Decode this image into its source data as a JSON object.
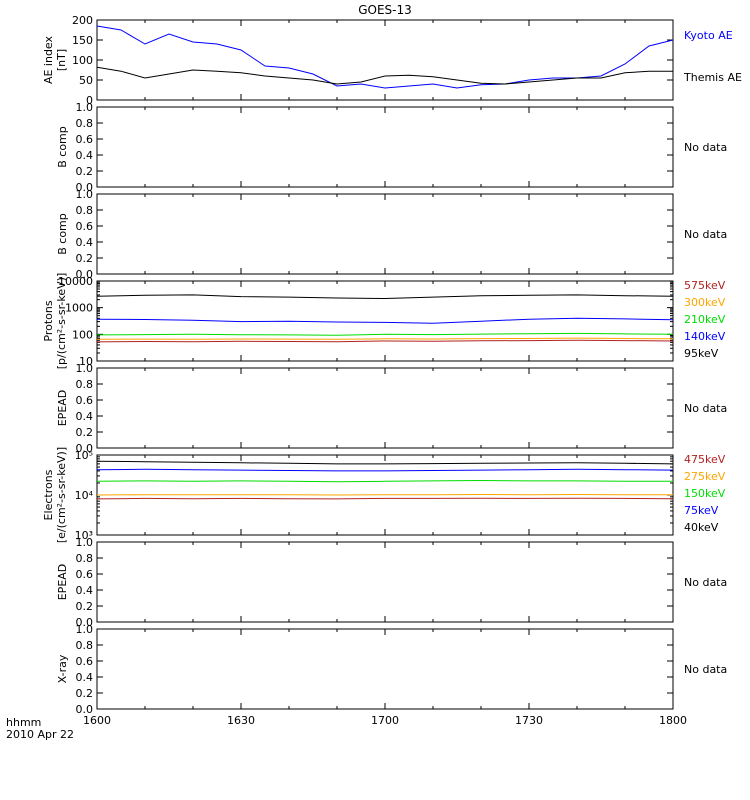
{
  "chart_data": {
    "type": "line",
    "title": "GOES-13",
    "x_ticks": [
      "1600",
      "1630",
      "1700",
      "1730",
      "1800"
    ],
    "x_range": [
      "1600",
      "1800"
    ],
    "x_corner_labels": [
      "hhmm",
      "2010 Apr 22"
    ],
    "no_data_text": "No data",
    "panels": [
      {
        "id": "ae",
        "ylabel": [
          "AE index",
          "[nT]"
        ],
        "scale": "linear",
        "ylim": [
          0,
          200
        ],
        "yticks": [
          0,
          50,
          100,
          150,
          200
        ],
        "ytick_labels": [
          "0",
          "50",
          "100",
          "150",
          "200"
        ],
        "x": [
          "1600",
          "1605",
          "1610",
          "1615",
          "1620",
          "1625",
          "1630",
          "1635",
          "1640",
          "1645",
          "1650",
          "1655",
          "1700",
          "1705",
          "1710",
          "1715",
          "1720",
          "1725",
          "1730",
          "1735",
          "1740",
          "1745",
          "1750",
          "1755",
          "1800"
        ],
        "series": [
          {
            "name": "Kyoto AE",
            "color": "#0000ff",
            "values": [
              185,
              175,
              140,
              165,
              145,
              140,
              125,
              85,
              80,
              65,
              35,
              40,
              30,
              35,
              40,
              30,
              38,
              40,
              50,
              55,
              55,
              60,
              90,
              135,
              150
            ]
          },
          {
            "name": "Themis AE",
            "color": "#000000",
            "values": [
              82,
              72,
              55,
              65,
              75,
              72,
              68,
              60,
              55,
              50,
              40,
              45,
              60,
              62,
              58,
              50,
              42,
              40,
              45,
              50,
              55,
              55,
              68,
              72,
              72
            ]
          }
        ]
      },
      {
        "id": "b1",
        "ylabel": [
          "B comp"
        ],
        "scale": "linear",
        "ylim": [
          0,
          1
        ],
        "yticks": [
          0,
          0.2,
          0.4,
          0.6,
          0.8,
          1.0
        ],
        "ytick_labels": [
          "0.0",
          "0.2",
          "0.4",
          "0.6",
          "0.8",
          "1.0"
        ],
        "no_data": true
      },
      {
        "id": "b2",
        "ylabel": [
          "B comp"
        ],
        "scale": "linear",
        "ylim": [
          0,
          1
        ],
        "yticks": [
          0,
          0.2,
          0.4,
          0.6,
          0.8,
          1.0
        ],
        "ytick_labels": [
          "0.0",
          "0.2",
          "0.4",
          "0.6",
          "0.8",
          "1.0"
        ],
        "no_data": true
      },
      {
        "id": "protons",
        "ylabel": [
          "Protons",
          "[p/(cm²-s-sr-keV)]"
        ],
        "scale": "log",
        "ylim": [
          10,
          10000
        ],
        "yticks": [
          10,
          100,
          1000,
          10000
        ],
        "ytick_labels": [
          "10",
          "100",
          "1000",
          "10000"
        ],
        "x": [
          "1600",
          "1610",
          "1620",
          "1630",
          "1640",
          "1650",
          "1700",
          "1710",
          "1720",
          "1730",
          "1740",
          "1750",
          "1800"
        ],
        "series": [
          {
            "name": "575keV",
            "color": "#b22222",
            "values": [
              52,
              54,
              53,
              55,
              54,
              53,
              56,
              55,
              57,
              58,
              60,
              58,
              56
            ]
          },
          {
            "name": "300keV",
            "color": "#ffa500",
            "values": [
              65,
              66,
              65,
              67,
              66,
              65,
              68,
              67,
              69,
              70,
              72,
              70,
              68
            ]
          },
          {
            "name": "210keV",
            "color": "#00dd00",
            "values": [
              95,
              98,
              100,
              97,
              95,
              93,
              100,
              98,
              102,
              105,
              108,
              104,
              100
            ]
          },
          {
            "name": "140keV",
            "color": "#0000ff",
            "values": [
              370,
              360,
              340,
              300,
              310,
              290,
              280,
              260,
              310,
              370,
              400,
              380,
              350
            ]
          },
          {
            "name": "95keV",
            "color": "#000000",
            "values": [
              2700,
              2900,
              3000,
              2600,
              2500,
              2300,
              2200,
              2500,
              2800,
              2900,
              3000,
              2800,
              2700
            ]
          }
        ]
      },
      {
        "id": "epead1",
        "ylabel": [
          "EPEAD"
        ],
        "scale": "linear",
        "ylim": [
          0,
          1
        ],
        "yticks": [
          0,
          0.2,
          0.4,
          0.6,
          0.8,
          1.0
        ],
        "ytick_labels": [
          "0.0",
          "0.2",
          "0.4",
          "0.6",
          "0.8",
          "1.0"
        ],
        "no_data": true
      },
      {
        "id": "electrons",
        "ylabel": [
          "Electrons",
          "[e/(cm²-s-sr-keV)]"
        ],
        "scale": "log",
        "ylim": [
          1000,
          100000
        ],
        "yticks": [
          1000,
          10000,
          100000
        ],
        "ytick_labels": [
          "10³",
          "10⁴",
          "10⁵"
        ],
        "x": [
          "1600",
          "1610",
          "1620",
          "1630",
          "1640",
          "1650",
          "1700",
          "1710",
          "1720",
          "1730",
          "1740",
          "1750",
          "1800"
        ],
        "series": [
          {
            "name": "475keV",
            "color": "#b22222",
            "values": [
              8000,
              8200,
              8100,
              8200,
              8100,
              8000,
              8200,
              8200,
              8300,
              8200,
              8300,
              8200,
              8100
            ]
          },
          {
            "name": "275keV",
            "color": "#ffa500",
            "values": [
              10000,
              10200,
              10100,
              10200,
              10100,
              10000,
              10200,
              10200,
              10300,
              10200,
              10300,
              10200,
              10100
            ]
          },
          {
            "name": "150keV",
            "color": "#00dd00",
            "values": [
              22000,
              22500,
              22000,
              22500,
              22000,
              21500,
              22000,
              22500,
              23000,
              22500,
              22500,
              22000,
              22000
            ]
          },
          {
            "name": "75keV",
            "color": "#0000ff",
            "values": [
              43000,
              44000,
              43000,
              42000,
              41000,
              40000,
              40000,
              41000,
              42000,
              43000,
              44000,
              43000,
              42000
            ]
          },
          {
            "name": "40keV",
            "color": "#000000",
            "values": [
              70000,
              68000,
              66000,
              64000,
              62000,
              60000,
              60000,
              61000,
              62000,
              63000,
              64000,
              62000,
              60000
            ]
          }
        ]
      },
      {
        "id": "epead2",
        "ylabel": [
          "EPEAD"
        ],
        "scale": "linear",
        "ylim": [
          0,
          1
        ],
        "yticks": [
          0,
          0.2,
          0.4,
          0.6,
          0.8,
          1.0
        ],
        "ytick_labels": [
          "0.0",
          "0.2",
          "0.4",
          "0.6",
          "0.8",
          "1.0"
        ],
        "no_data": true
      },
      {
        "id": "xray",
        "ylabel": [
          "X-ray"
        ],
        "scale": "linear",
        "ylim": [
          0,
          1
        ],
        "yticks": [
          0,
          0.2,
          0.4,
          0.6,
          0.8,
          1.0
        ],
        "ytick_labels": [
          "0.0",
          "0.2",
          "0.4",
          "0.6",
          "0.8",
          "1.0"
        ],
        "no_data": true
      }
    ]
  }
}
